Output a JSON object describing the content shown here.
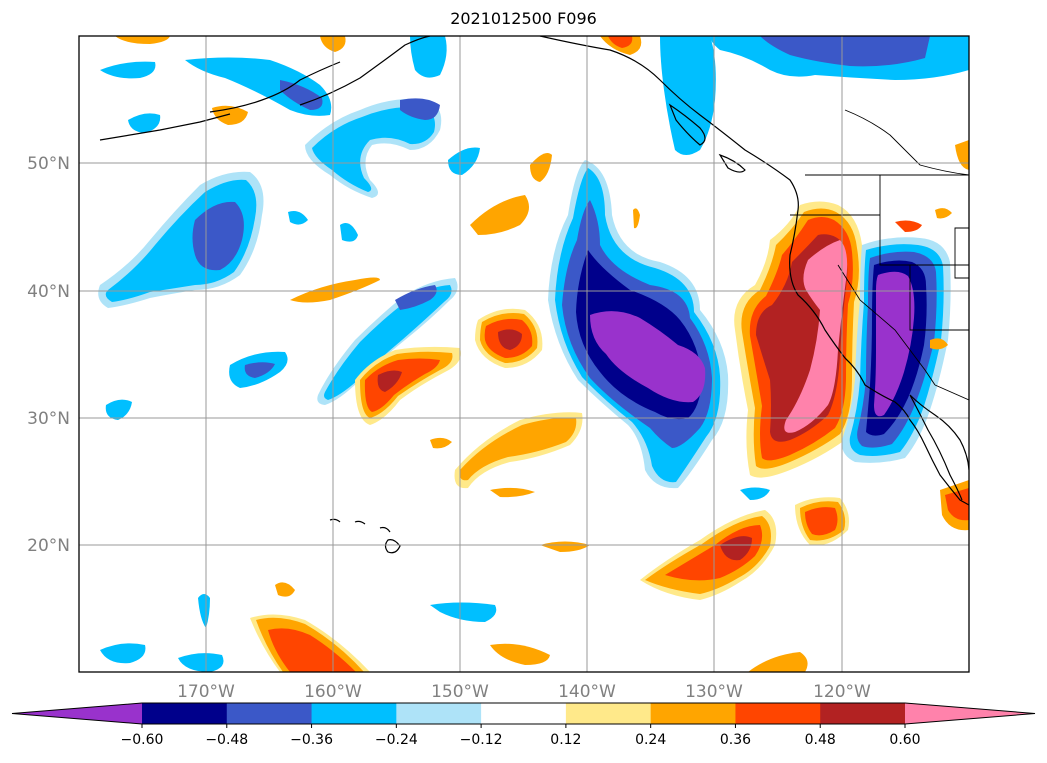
{
  "title": "2021012500 F096",
  "longitude_labels": [
    "170°W",
    "160°W",
    "150°W",
    "140°W",
    "130°W",
    "120°W"
  ],
  "latitude_labels": [
    "50°N",
    "40°N",
    "30°N",
    "20°N"
  ],
  "colorbar": {
    "colors": [
      "#9932cc",
      "#00008b",
      "#3b58c8",
      "#00bfff",
      "#aee3f8",
      "#ffffff",
      "#ffe98a",
      "#ffa500",
      "#ff4500",
      "#b22222",
      "#ff82ab"
    ],
    "tick_labels": [
      "−0.60",
      "−0.48",
      "−0.36",
      "−0.24",
      "−0.12",
      "0.12",
      "0.24",
      "0.36",
      "0.48",
      "0.60"
    ],
    "extend": "both"
  },
  "palette": {
    "neg_strong": "#9932cc",
    "neg_high": "#00008b",
    "neg_mid": "#3b58c8",
    "neg_low": "#00bfff",
    "neg_weak": "#aee3f8",
    "pos_weak": "#ffe98a",
    "pos_low": "#ffa500",
    "pos_mid": "#ff4500",
    "pos_high": "#b22222",
    "pos_strong": "#ff82ab"
  }
}
